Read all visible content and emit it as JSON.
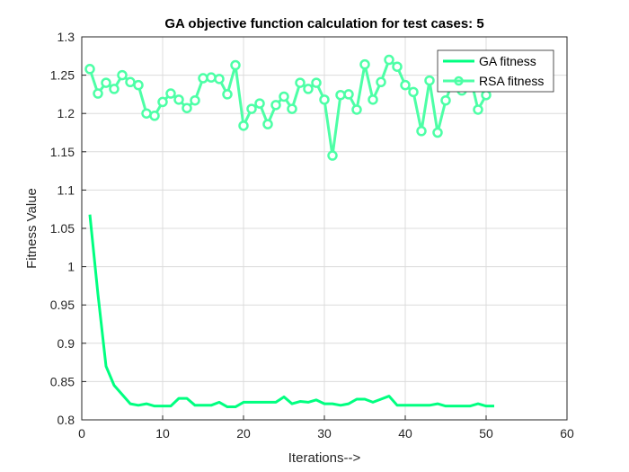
{
  "chart_data": {
    "type": "line",
    "title": "GA objective function calculation for test cases: 5",
    "xlabel": "Iterations-->",
    "ylabel": "Fitness Value",
    "xlim": [
      0,
      60
    ],
    "ylim": [
      0.8,
      1.3
    ],
    "xticks": [
      0,
      10,
      20,
      30,
      40,
      50,
      60
    ],
    "yticks": [
      0.8,
      0.85,
      0.9,
      0.95,
      1,
      1.05,
      1.1,
      1.15,
      1.2,
      1.25,
      1.3
    ],
    "ytick_labels": [
      "0.8",
      "0.85",
      "0.9",
      "0.95",
      "1",
      "1.05",
      "1.1",
      "1.15",
      "1.2",
      "1.25",
      "1.3"
    ],
    "grid": true,
    "legend_position": "top-right",
    "x": [
      1,
      2,
      3,
      4,
      5,
      6,
      7,
      8,
      9,
      10,
      11,
      12,
      13,
      14,
      15,
      16,
      17,
      18,
      19,
      20,
      21,
      22,
      23,
      24,
      25,
      26,
      27,
      28,
      29,
      30,
      31,
      32,
      33,
      34,
      35,
      36,
      37,
      38,
      39,
      40,
      41,
      42,
      43,
      44,
      45,
      46,
      47,
      48,
      49,
      50,
      51
    ],
    "series": [
      {
        "name": "GA fitness",
        "color": "#00ff80",
        "marker": "none",
        "values": [
          1.068,
          0.964,
          0.87,
          0.845,
          0.833,
          0.821,
          0.819,
          0.821,
          0.818,
          0.818,
          0.818,
          0.828,
          0.828,
          0.819,
          0.819,
          0.819,
          0.823,
          0.817,
          0.817,
          0.823,
          0.823,
          0.823,
          0.823,
          0.823,
          0.83,
          0.821,
          0.824,
          0.823,
          0.826,
          0.821,
          0.821,
          0.819,
          0.821,
          0.827,
          0.827,
          0.823,
          0.827,
          0.831,
          0.819,
          0.819,
          0.819,
          0.819,
          0.819,
          0.821,
          0.818,
          0.818,
          0.818,
          0.818,
          0.821,
          0.818,
          0.818
        ]
      },
      {
        "name": "RSA fitness",
        "color": "#4dffa6",
        "marker": "circle",
        "values": [
          1.258,
          1.226,
          1.24,
          1.232,
          1.25,
          1.241,
          1.237,
          1.2,
          1.197,
          1.215,
          1.226,
          1.218,
          1.207,
          1.217,
          1.246,
          1.247,
          1.245,
          1.225,
          1.263,
          1.184,
          1.206,
          1.213,
          1.186,
          1.211,
          1.222,
          1.206,
          1.24,
          1.232,
          1.24,
          1.218,
          1.145,
          1.224,
          1.225,
          1.205,
          1.264,
          1.218,
          1.241,
          1.27,
          1.261,
          1.237,
          1.228,
          1.177,
          1.243,
          1.175,
          1.217,
          1.245,
          1.23,
          1.25,
          1.205,
          1.224,
          1.25
        ]
      }
    ]
  }
}
